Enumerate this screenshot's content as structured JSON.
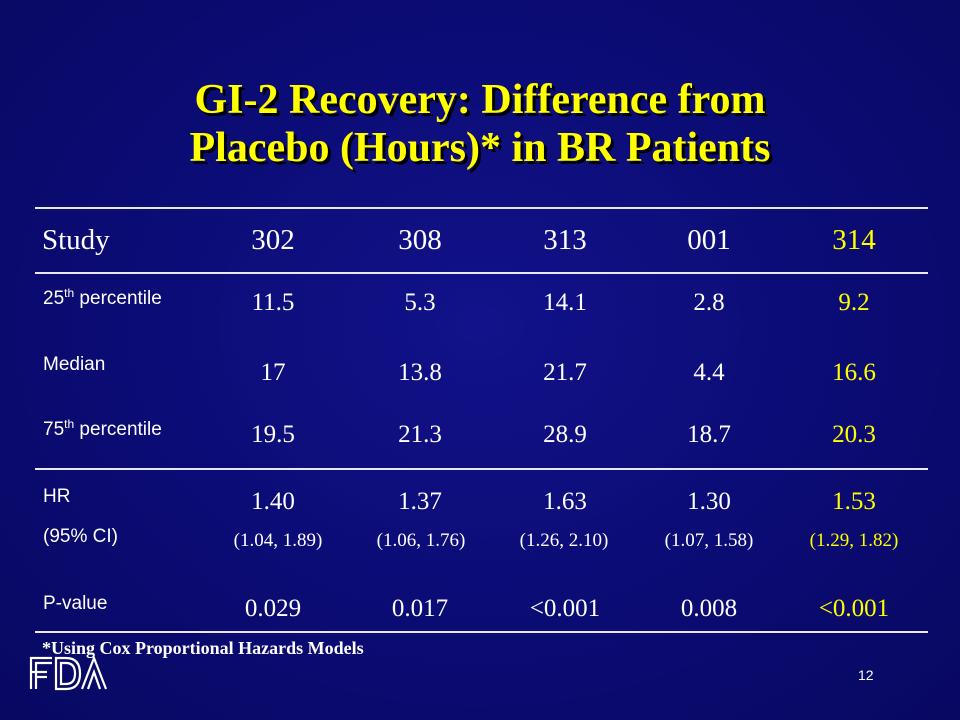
{
  "slide": {
    "title_line1": "GI-2 Recovery: Difference from",
    "title_line2": "Placebo (Hours)* in BR Patients",
    "footnote": "*Using Cox Proportional Hazards Models",
    "page_number": "12",
    "logo_text": "FDA"
  },
  "table": {
    "header": {
      "label": "Study",
      "studies": [
        "302",
        "308",
        "313",
        "001",
        "314"
      ]
    },
    "rows": {
      "p25": {
        "label_prefix": "25",
        "label_sup": "th",
        "label_suffix": " percentile",
        "values": [
          "11.5",
          "5.3",
          "14.1",
          "2.8",
          "9.2"
        ]
      },
      "median": {
        "label": "Median",
        "values": [
          "17",
          "13.8",
          "21.7",
          "4.4",
          "16.6"
        ]
      },
      "p75": {
        "label_prefix": "75",
        "label_sup": "th",
        "label_suffix": " percentile",
        "values": [
          "19.5",
          "21.3",
          "28.9",
          "18.7",
          "20.3"
        ]
      },
      "hr": {
        "label": "HR",
        "ci_label": "(95% CI)",
        "values": [
          "1.40",
          "1.37",
          "1.63",
          "1.30",
          "1.53"
        ],
        "ci": [
          "(1.04, 1.89)",
          "(1.06, 1.76)",
          "(1.26, 2.10)",
          "(1.07, 1.58)",
          "(1.29, 1.82)"
        ]
      },
      "pvalue": {
        "label": "P-value",
        "values": [
          "0.029",
          "0.017",
          "<0.001",
          "0.008",
          "<0.001"
        ]
      }
    }
  },
  "colors": {
    "background": "#0b0b74",
    "title": "#ffff00",
    "highlight_column": "#ffff00",
    "text": "#ffffff",
    "rule": "#e8e8f0"
  }
}
